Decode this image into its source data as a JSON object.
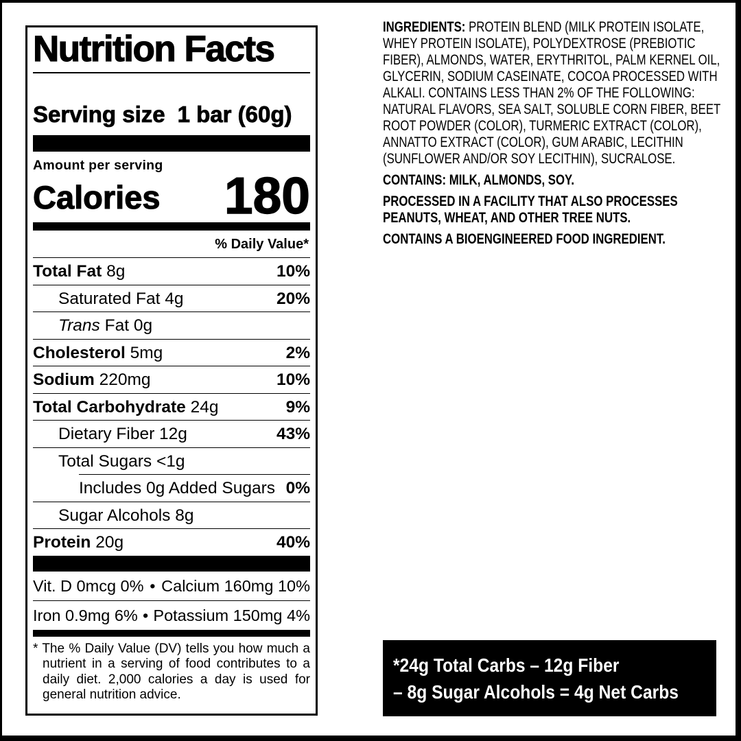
{
  "colors": {
    "ink": "#000000",
    "paper": "#ffffff"
  },
  "label": {
    "title": "Nutrition Facts",
    "serving_size_label": "Serving size",
    "serving_size_value": "1 bar (60g)",
    "amount_per_serving": "Amount per serving",
    "calories_label": "Calories",
    "calories_value": "180",
    "daily_value_header": "% Daily Value*",
    "rows": [
      {
        "name": "Total Fat",
        "amount": "8g",
        "dv": "10%",
        "bold": true,
        "indent": 0
      },
      {
        "name": "Saturated Fat",
        "amount": "4g",
        "dv": "20%",
        "indent": 1
      },
      {
        "italic": "Trans",
        "name": "Fat",
        "amount": "0g",
        "indent": 1
      },
      {
        "name": "Cholesterol",
        "amount": "5mg",
        "dv": "2%",
        "bold": true,
        "indent": 0
      },
      {
        "name": "Sodium",
        "amount": "220mg",
        "dv": "10%",
        "bold": true,
        "indent": 0
      },
      {
        "name": "Total Carbohydrate",
        "amount": "24g",
        "dv": "9%",
        "bold": true,
        "indent": 0
      },
      {
        "name": "Dietary Fiber",
        "amount": "12g",
        "dv": "43%",
        "indent": 1
      },
      {
        "name": "Total Sugars",
        "amount": "<1g",
        "indent": 1
      },
      {
        "name": "Includes 0g Added Sugars",
        "amount": "",
        "dv": "0%",
        "indent": 2,
        "sep_indent": true
      },
      {
        "name": "Sugar Alcohols",
        "amount": "8g",
        "indent": 1
      },
      {
        "name": "Protein",
        "amount": "20g",
        "dv": "40%",
        "bold": true,
        "indent": 0
      }
    ],
    "vitamins": [
      {
        "left": "Vit. D 0mcg 0%",
        "bullet": "•",
        "right": "Calcium 160mg 10%"
      },
      {
        "left": "Iron 0.9mg 6%",
        "bullet": "•",
        "right": "Potassium 150mg 4%"
      }
    ],
    "footnote_marker": "*",
    "footnote": "The % Daily Value (DV) tells you how much a nutrient in a serving of food contributes to a daily diet. 2,000 calories a day is used for general nutrition advice."
  },
  "ingredients": {
    "lead": "INGREDIENTS:",
    "body": "PROTEIN BLEND (MILK PROTEIN ISOLATE, WHEY PROTEIN ISOLATE), POLYDEXTROSE (PREBIOTIC FIBER), ALMONDS, WATER, ERYTHRITOL, PALM KERNEL OIL, GLYCERIN, SODIUM CASEINATE, COCOA PROCESSED WITH ALKALI. CONTAINS LESS THAN 2% OF THE FOLLOWING:  NATURAL FLAVORS, SEA SALT, SOLUBLE CORN FIBER, BEET ROOT POWDER (COLOR), TURMERIC EXTRACT (COLOR), ANNATTO EXTRACT (COLOR), GUM ARABIC, LECITHIN (SUNFLOWER AND/OR SOY LECITHIN), SUCRALOSE.",
    "contains": "CONTAINS: MILK, ALMONDS, SOY.",
    "facility": "PROCESSED IN A FACILITY THAT ALSO PROCESSES PEANUTS, WHEAT, AND OTHER TREE NUTS.",
    "bioengineered": "CONTAINS A BIOENGINEERED FOOD INGREDIENT."
  },
  "net_carbs": {
    "line1": "*24g Total Carbs – 12g Fiber",
    "line2": "– 8g Sugar Alcohols = 4g Net Carbs"
  }
}
